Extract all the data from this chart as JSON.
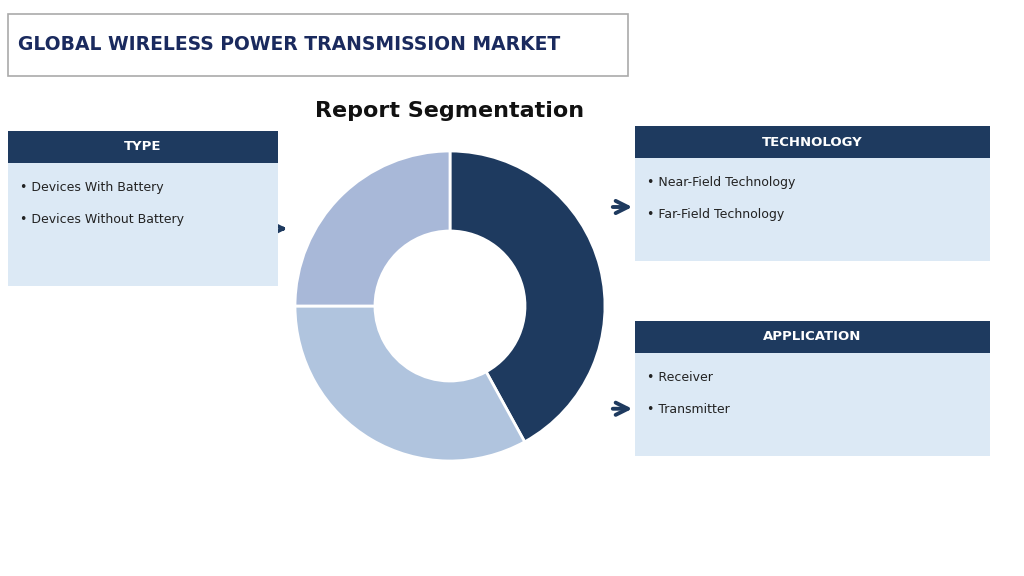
{
  "title_main": "GLOBAL WIRELESS POWER TRANSMISSION MARKET",
  "title_sub": "Report Segmentation",
  "background_color": "#ffffff",
  "title_box_color": "#ffffff",
  "title_text_color": "#1a2a5e",
  "title_border_color": "#aaaaaa",
  "header_bg_color": "#1e3a5f",
  "header_text_color": "#ffffff",
  "content_bg_color": "#dce9f5",
  "arrow_color": "#1e3a5f",
  "donut_colors": [
    "#1e3a5f",
    "#b0c4de",
    "#a8b8d8"
  ],
  "donut_sizes": [
    0.42,
    0.33,
    0.25
  ],
  "segments": [
    {
      "label": "TECHNOLOGY",
      "items": [
        "Near-Field Technology",
        "Far-Field Technology"
      ],
      "position": "right_top",
      "arrow_dir": "right"
    },
    {
      "label": "TYPE",
      "items": [
        "Devices With Battery",
        "Devices Without Battery"
      ],
      "position": "left",
      "arrow_dir": "left"
    },
    {
      "label": "APPLICATION",
      "items": [
        "Receiver",
        "Transmitter"
      ],
      "position": "right_bottom",
      "arrow_dir": "right"
    }
  ]
}
